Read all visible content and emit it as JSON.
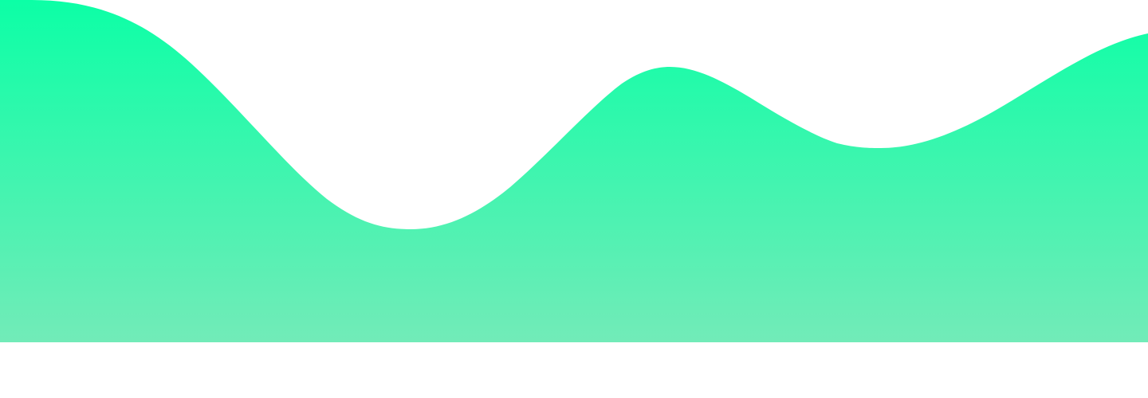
{
  "background_color": "#ffffff",
  "wave": {
    "gradient_top_color": "#0cffa6",
    "gradient_bottom_color": "#72ebb8"
  }
}
